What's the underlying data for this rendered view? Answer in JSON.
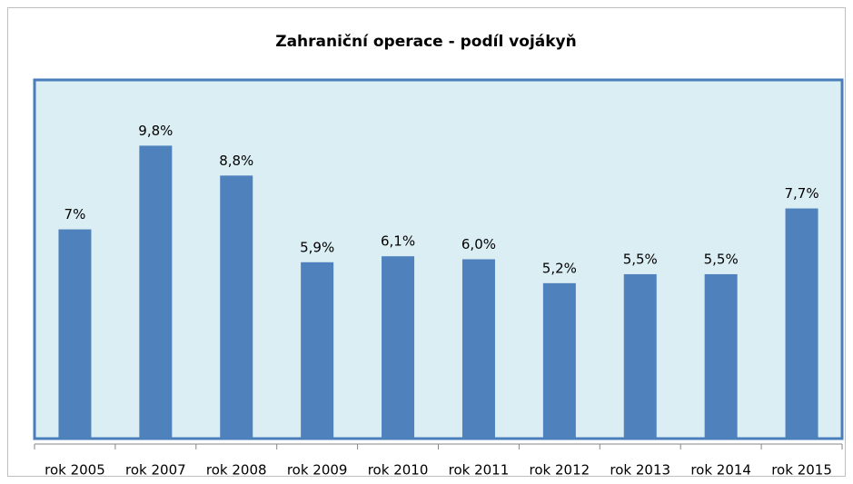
{
  "chart_data": {
    "type": "bar",
    "title": "Zahraniční operace - podíl vojákyň",
    "categories": [
      "rok 2005",
      "rok 2007",
      "rok 2008",
      "rok 2009",
      "rok 2010",
      "rok 2011",
      "rok 2012",
      "rok 2013",
      "rok 2014",
      "rok 2015"
    ],
    "values": [
      7,
      9.8,
      8.8,
      5.9,
      6.1,
      6.0,
      5.2,
      5.5,
      5.5,
      7.7
    ],
    "value_labels": [
      "7%",
      "9,8%",
      "8,8%",
      "5,9%",
      "6,1%",
      "6,0%",
      "5,2%",
      "5,5%",
      "5,5%",
      "7,7%"
    ],
    "color": "#4f81bd",
    "ylim": [
      0,
      12
    ]
  }
}
